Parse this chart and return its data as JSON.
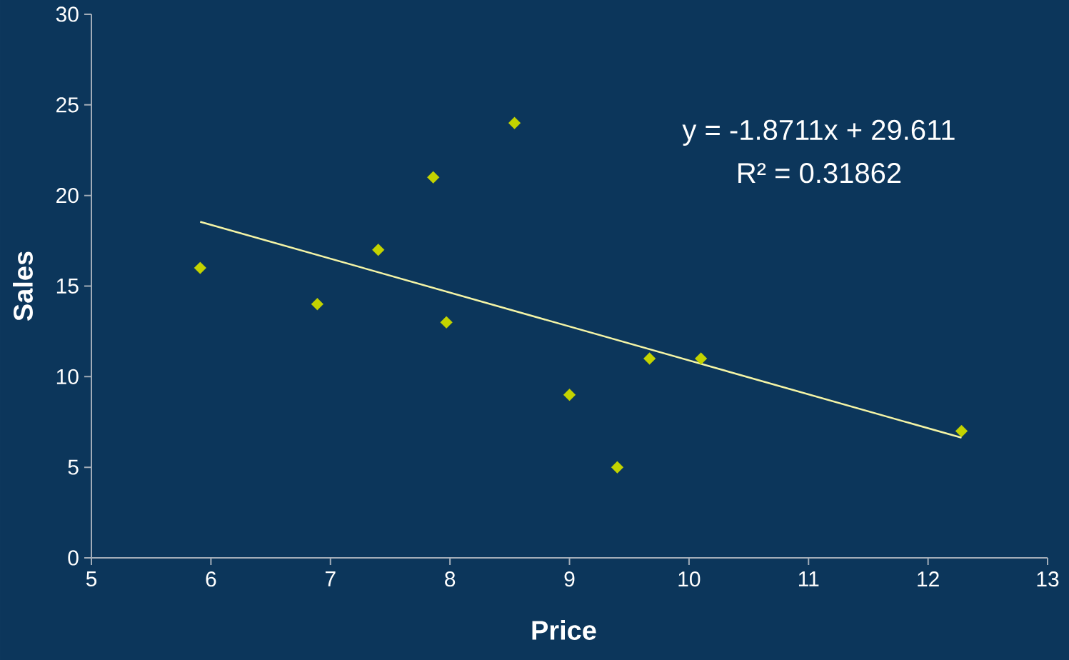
{
  "chart_data": {
    "type": "scatter",
    "xlabel": "Price",
    "ylabel": "Sales",
    "annotations": [
      "y = -1.8711x + 29.611",
      "R² = 0.31862"
    ],
    "series": [
      {
        "type": "scatter",
        "color": "#c3d300",
        "marker": "diamond",
        "x": [
          5.91,
          6.89,
          7.4,
          7.86,
          7.97,
          8.54,
          9.0,
          9.4,
          9.67,
          10.1,
          12.28
        ],
        "values": [
          16,
          14,
          17,
          21,
          13,
          24,
          9,
          5,
          11,
          11,
          7
        ]
      },
      {
        "type": "line",
        "color": "#f4f4a6",
        "marker": "none",
        "line_style": "solid",
        "x": [
          5.91,
          12.28
        ],
        "values": [
          18.55,
          6.63
        ]
      }
    ],
    "xlim": [
      5,
      13
    ],
    "ylim": [
      0,
      30
    ],
    "xticks": [
      5,
      6,
      7,
      8,
      9,
      10,
      11,
      12,
      13
    ],
    "yticks": [
      0,
      5,
      10,
      15,
      20,
      25,
      30
    ],
    "grid": false
  }
}
